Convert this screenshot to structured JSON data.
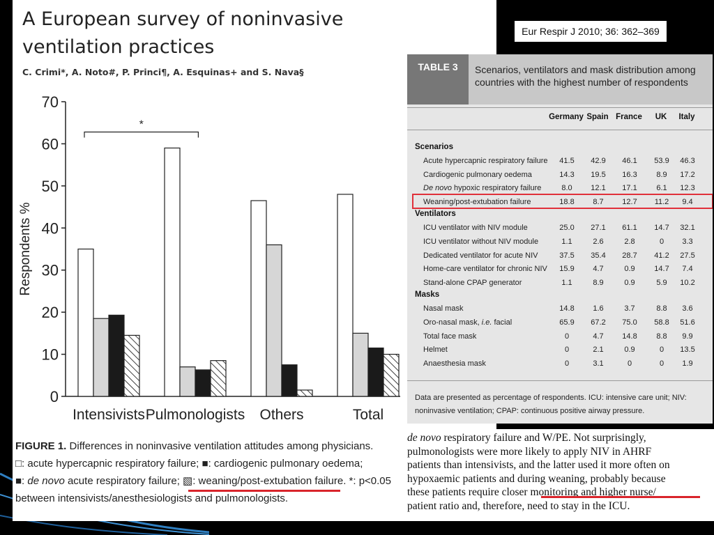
{
  "paper": {
    "title": "A European survey of noninvasive\nventilation practices",
    "authors": "C. Crimi*, A. Noto#, P. Princi¶, A. Esquinas+ and S. Nava§",
    "citation": "Eur Respir J 2010; 36: 362–369"
  },
  "figure": {
    "caption_label": "FIGURE 1.",
    "caption_title": " Differences in noninvasive ventilation attitudes among physicians.",
    "legend_1": "□: acute hypercapnic respiratory failure; ",
    "legend_2": "■: cardiogenic pulmonary oedema;",
    "legend_3": "■: ",
    "legend_3_italic": "de novo",
    "legend_3b": " acute respiratory failure; ",
    "legend_4": "▧: weaning/post-extubation failure.",
    "legend_5": " *: p<0.05",
    "caption_end": "between intensivists/anesthesiologists and pulmonologists."
  },
  "colors": {
    "bg": "#000000",
    "highlight": "#e0303a",
    "underline": "#d9242b",
    "accent": "#2f7fc1"
  },
  "chart_data": {
    "type": "bar",
    "ylabel": "Respondents %",
    "ylim": [
      0,
      70
    ],
    "yticks": [
      0,
      10,
      20,
      30,
      40,
      50,
      60,
      70
    ],
    "categories": [
      "Intensivists",
      "Pulmonologists",
      "Others",
      "Total"
    ],
    "series": [
      {
        "name": "acute hypercapnic respiratory failure",
        "fill": "#ffffff",
        "values": [
          35,
          59,
          46.5,
          48
        ]
      },
      {
        "name": "cardiogenic pulmonary oedema",
        "fill": "#d6d6d6",
        "values": [
          18.5,
          7,
          36,
          15
        ]
      },
      {
        "name": "de novo acute respiratory failure",
        "fill": "#1a1a1a",
        "values": [
          19.3,
          6.3,
          7.5,
          11.5
        ]
      },
      {
        "name": "weaning/post-extubation failure",
        "fill": "hatch",
        "values": [
          14.5,
          8.5,
          1.5,
          10
        ]
      }
    ],
    "significance": {
      "label": "*",
      "between": [
        "Intensivists",
        "Pulmonologists"
      ]
    },
    "grid": false
  },
  "table": {
    "label": "TABLE 3",
    "caption": "Scenarios, ventilators and mask distribution among countries with the highest number of respondents",
    "columns": [
      "Germany",
      "Spain",
      "France",
      "UK",
      "Italy"
    ],
    "sections": [
      {
        "title": "Scenarios",
        "rows": [
          {
            "label": "Acute hypercapnic respiratory failure",
            "values": [
              "41.5",
              "42.9",
              "46.1",
              "53.9",
              "46.3"
            ]
          },
          {
            "label": "Cardiogenic pulmonary oedema",
            "values": [
              "14.3",
              "19.5",
              "16.3",
              "8.9",
              "17.2"
            ]
          },
          {
            "label_italic": "De novo",
            "label": " hypoxic respiratory failure",
            "values": [
              "8.0",
              "12.1",
              "17.1",
              "6.1",
              "12.3"
            ]
          },
          {
            "label": "Weaning/post-extubation failure",
            "values": [
              "18.8",
              "8.7",
              "12.7",
              "11.2",
              "9.4"
            ],
            "highlighted": true
          }
        ]
      },
      {
        "title": "Ventilators",
        "rows": [
          {
            "label": "ICU ventilator with NIV module",
            "values": [
              "25.0",
              "27.1",
              "61.1",
              "14.7",
              "32.1"
            ]
          },
          {
            "label": "ICU ventilator without NIV module",
            "values": [
              "1.1",
              "2.6",
              "2.8",
              "0",
              "3.3"
            ]
          },
          {
            "label": "Dedicated ventilator for acute NIV",
            "values": [
              "37.5",
              "35.4",
              "28.7",
              "41.2",
              "27.5"
            ]
          },
          {
            "label": "Home-care ventilator for chronic NIV",
            "values": [
              "15.9",
              "4.7",
              "0.9",
              "14.7",
              "7.4"
            ]
          },
          {
            "label": "Stand-alone CPAP generator",
            "values": [
              "1.1",
              "8.9",
              "0.9",
              "5.9",
              "10.2"
            ]
          }
        ]
      },
      {
        "title": "Masks",
        "rows": [
          {
            "label": "Nasal mask",
            "values": [
              "14.8",
              "1.6",
              "3.7",
              "8.8",
              "3.6"
            ]
          },
          {
            "label": "Oro-nasal mask, ",
            "label_italic_suffix": "i.e.",
            "label_after": " facial",
            "values": [
              "65.9",
              "67.2",
              "75.0",
              "58.8",
              "51.6"
            ]
          },
          {
            "label": "Total face mask",
            "values": [
              "0",
              "4.7",
              "14.8",
              "8.8",
              "9.9"
            ]
          },
          {
            "label": "Helmet",
            "values": [
              "0",
              "2.1",
              "0.9",
              "0",
              "13.5"
            ]
          },
          {
            "label": "Anaesthesia mask",
            "values": [
              "0",
              "3.1",
              "0",
              "0",
              "1.9"
            ]
          }
        ]
      }
    ],
    "footnote": "Data are presented as percentage of respondents. ICU: intensive care unit; NIV: noninvasive ventilation; CPAP: continuous positive airway pressure."
  },
  "body_text": {
    "l1_italic": "de novo",
    "l1": " respiratory failure and W/PE. Not surprisingly,",
    "l2": "pulmonologists were more likely to apply NIV in AHRF",
    "l3": "patients than intensivists, and the latter used it more often on",
    "l4": "hypoxaemic patients and during weaning, probably because",
    "l5a": "these patients require closer ",
    "l5b": "monitoring and higher nurse",
    "l5c": "/",
    "l6": "patient ratio and, therefore, need to stay in the ICU."
  }
}
